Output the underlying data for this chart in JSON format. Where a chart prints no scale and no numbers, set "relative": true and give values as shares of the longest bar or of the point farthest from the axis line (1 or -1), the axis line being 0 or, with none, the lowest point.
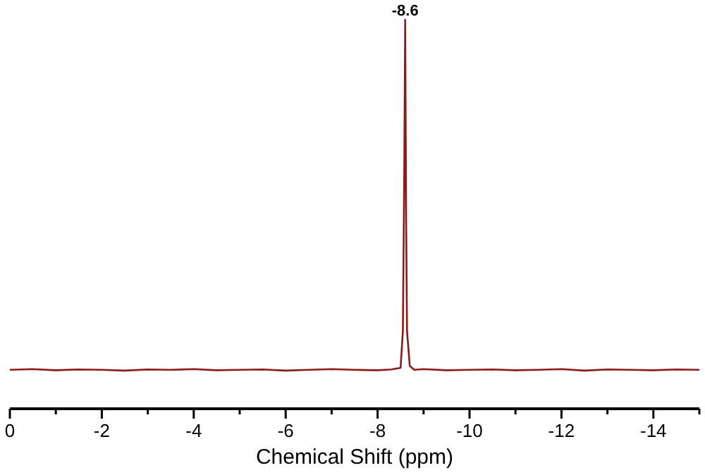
{
  "chart_data": {
    "type": "line",
    "relative": true,
    "xlabel": "Chemical Shift (ppm)",
    "xlim": [
      0,
      -15
    ],
    "xticks": [
      0,
      {
        "value": -1,
        "label": null
      },
      -2,
      {
        "value": -3,
        "label": null
      },
      -4,
      {
        "value": -5,
        "label": null
      },
      -6,
      {
        "value": -7,
        "label": null
      },
      -8,
      {
        "value": -9,
        "label": null
      },
      -10,
      {
        "value": -11,
        "label": null
      },
      -12,
      {
        "value": -13,
        "label": null
      },
      -14,
      {
        "value": -15,
        "label": null
      }
    ],
    "annotations": [
      {
        "text": "-8.6",
        "x": -8.6,
        "y": 1
      }
    ],
    "series": [
      {
        "color": "#8b1a1a",
        "x": [
          0,
          -0.5,
          -1,
          -1.5,
          -2,
          -2.5,
          -3,
          -3.5,
          -4,
          -4.5,
          -5,
          -5.5,
          -6,
          -6.5,
          -7,
          -7.5,
          -8,
          -8.3,
          -8.5,
          -8.55,
          -8.58,
          -8.6,
          -8.62,
          -8.64,
          -8.66,
          -8.7,
          -8.8,
          -9,
          -9.5,
          -10,
          -10.5,
          -11,
          -11.5,
          -12,
          -12.5,
          -13,
          -13.5,
          -14,
          -14.5,
          -15
        ],
        "values": [
          0.1,
          0.102,
          0.099,
          0.101,
          0.1,
          0.098,
          0.101,
          0.1,
          0.102,
          0.099,
          0.1,
          0.101,
          0.098,
          0.1,
          0.102,
          0.1,
          0.099,
          0.101,
          0.105,
          0.2,
          0.6,
          1,
          0.5,
          0.2,
          0.17,
          0.11,
          0.1,
          0.102,
          0.099,
          0.1,
          0.101,
          0.099,
          0.1,
          0.102,
          0.098,
          0.101,
          0.1,
          0.099,
          0.101,
          0.1
        ]
      }
    ]
  }
}
